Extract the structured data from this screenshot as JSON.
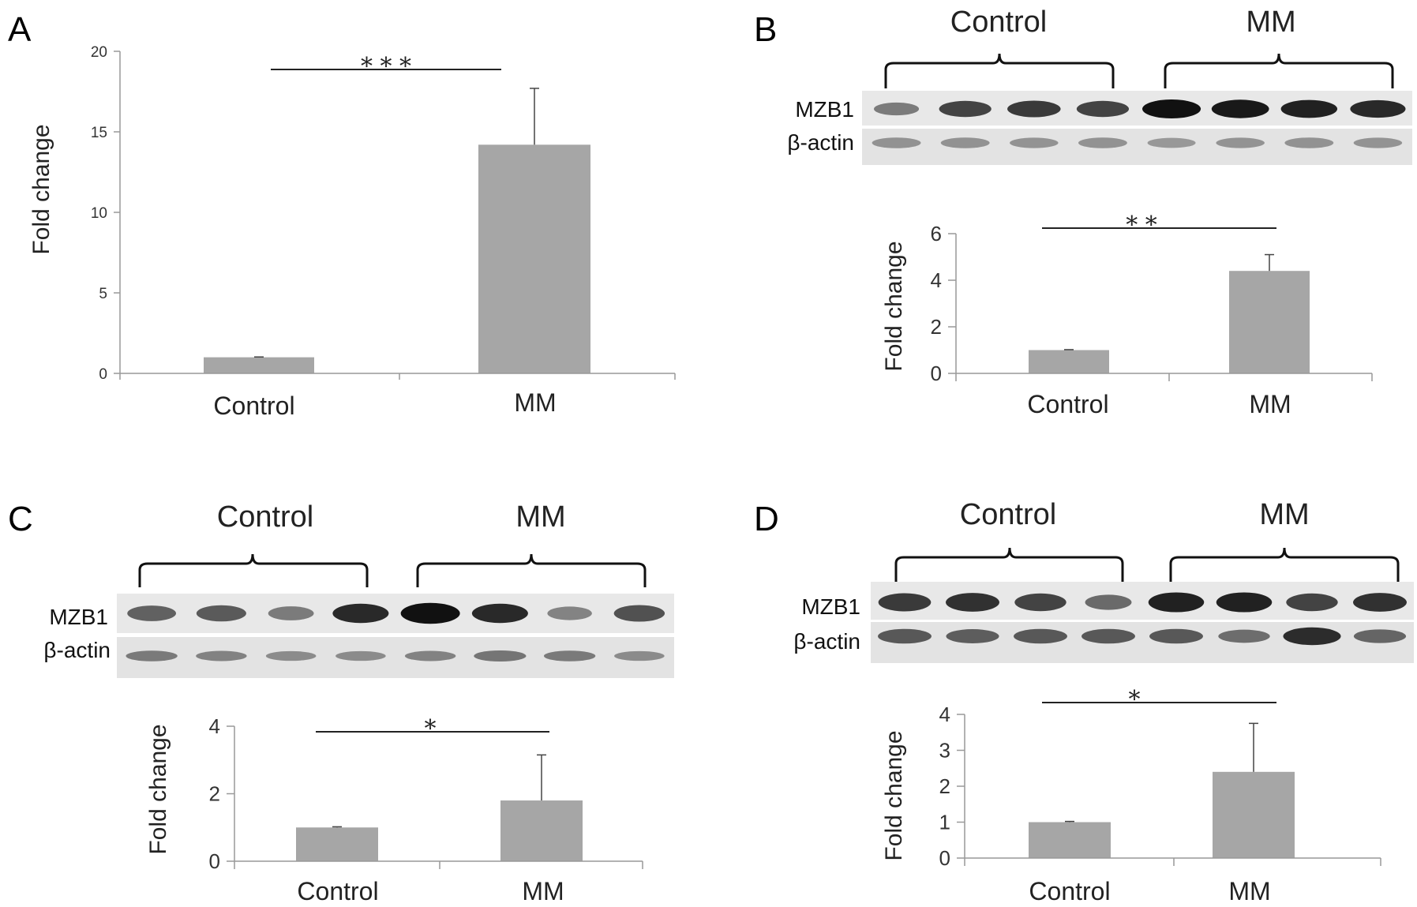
{
  "chart_data": [
    {
      "panel": "A",
      "type": "bar",
      "categories": [
        "Control",
        "MM"
      ],
      "values": [
        1.0,
        14.2
      ],
      "errors": [
        0.02,
        3.5
      ],
      "ylabel": "Fold change",
      "ylim": [
        0,
        20
      ],
      "yticks": [
        "0",
        "5",
        "10",
        "15",
        "20"
      ],
      "significance": "***",
      "grid": false
    },
    {
      "panel": "B",
      "type": "bar",
      "categories": [
        "Control",
        "MM"
      ],
      "values": [
        1.0,
        4.4
      ],
      "errors": [
        0.02,
        0.7
      ],
      "ylabel": "Fold change",
      "ylim": [
        0,
        6
      ],
      "yticks": [
        "0",
        "2",
        "4",
        "6"
      ],
      "significance": "**",
      "grid": false,
      "blot": {
        "groups": [
          "Control",
          "MM"
        ],
        "rows": [
          "MZB1",
          "β-actin"
        ],
        "mzb1_intensity": [
          0.35,
          0.7,
          0.75,
          0.7,
          1.0,
          0.95,
          0.9,
          0.85
        ],
        "actin_intensity": [
          0.3,
          0.3,
          0.28,
          0.3,
          0.25,
          0.28,
          0.3,
          0.28
        ]
      }
    },
    {
      "panel": "C",
      "type": "bar",
      "categories": [
        "Control",
        "MM"
      ],
      "values": [
        1.0,
        1.8
      ],
      "errors": [
        0.02,
        1.35
      ],
      "ylabel": "Fold change",
      "ylim": [
        0,
        4
      ],
      "yticks": [
        "0",
        "2",
        "4"
      ],
      "significance": "*",
      "grid": false,
      "blot": {
        "groups": [
          "Control",
          "MM"
        ],
        "rows": [
          "MZB1",
          "β-actin"
        ],
        "mzb1_intensity": [
          0.5,
          0.55,
          0.35,
          0.85,
          1.0,
          0.85,
          0.3,
          0.6
        ],
        "actin_intensity": [
          0.45,
          0.4,
          0.35,
          0.35,
          0.4,
          0.5,
          0.45,
          0.35
        ]
      }
    },
    {
      "panel": "D",
      "type": "bar",
      "categories": [
        "Control",
        "MM"
      ],
      "values": [
        1.0,
        2.4
      ],
      "errors": [
        0.02,
        1.35
      ],
      "ylabel": "Fold change",
      "ylim": [
        0,
        4
      ],
      "yticks": [
        "0",
        "1",
        "2",
        "3",
        "4"
      ],
      "significance": "*",
      "grid": false,
      "blot": {
        "groups": [
          "Control",
          "MM"
        ],
        "rows": [
          "MZB1",
          "β-actin"
        ],
        "mzb1_intensity": [
          0.75,
          0.8,
          0.7,
          0.45,
          0.9,
          0.9,
          0.7,
          0.8
        ],
        "actin_intensity": [
          0.7,
          0.65,
          0.7,
          0.7,
          0.7,
          0.55,
          1.0,
          0.6
        ]
      }
    }
  ],
  "colors": {
    "bar": "#a6a6a6",
    "band": "#111111",
    "blot_bg": "#e6e6e6"
  }
}
